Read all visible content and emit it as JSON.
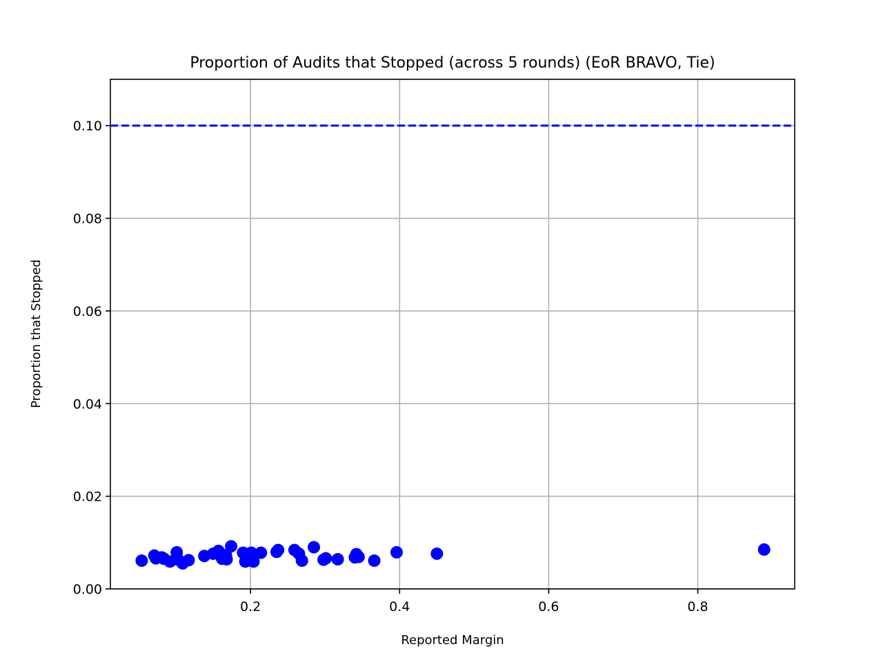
{
  "chart_data": {
    "type": "scatter",
    "title": "Proportion of Audits that Stopped (across 5 rounds) (EoR BRAVO, Tie)",
    "xlabel": "Reported Margin",
    "ylabel": "Proportion that Stopped",
    "xlim": [
      0.012,
      0.93
    ],
    "ylim": [
      0.0,
      0.11
    ],
    "xticks": [
      0.2,
      0.4,
      0.6,
      0.8
    ],
    "xtick_labels": [
      "0.2",
      "0.4",
      "0.6",
      "0.8"
    ],
    "yticks": [
      0.0,
      0.02,
      0.04,
      0.06,
      0.08,
      0.1
    ],
    "ytick_labels": [
      "0.00",
      "0.02",
      "0.04",
      "0.06",
      "0.08",
      "0.10"
    ],
    "grid": true,
    "reference_line": {
      "y": 0.1,
      "style": "dashed",
      "color": "#0000ff"
    },
    "marker_color": "#0000ff",
    "points": [
      {
        "x": 0.054,
        "y": 0.0061
      },
      {
        "x": 0.071,
        "y": 0.0072
      },
      {
        "x": 0.073,
        "y": 0.0066
      },
      {
        "x": 0.081,
        "y": 0.0068
      },
      {
        "x": 0.084,
        "y": 0.0065
      },
      {
        "x": 0.092,
        "y": 0.0059
      },
      {
        "x": 0.101,
        "y": 0.0079
      },
      {
        "x": 0.103,
        "y": 0.0063
      },
      {
        "x": 0.109,
        "y": 0.0055
      },
      {
        "x": 0.117,
        "y": 0.0062
      },
      {
        "x": 0.138,
        "y": 0.0071
      },
      {
        "x": 0.15,
        "y": 0.0076
      },
      {
        "x": 0.157,
        "y": 0.0082
      },
      {
        "x": 0.162,
        "y": 0.0065
      },
      {
        "x": 0.167,
        "y": 0.0073
      },
      {
        "x": 0.168,
        "y": 0.0064
      },
      {
        "x": 0.174,
        "y": 0.0092
      },
      {
        "x": 0.19,
        "y": 0.0078
      },
      {
        "x": 0.193,
        "y": 0.0059
      },
      {
        "x": 0.201,
        "y": 0.0078
      },
      {
        "x": 0.204,
        "y": 0.0059
      },
      {
        "x": 0.214,
        "y": 0.0078
      },
      {
        "x": 0.235,
        "y": 0.008
      },
      {
        "x": 0.237,
        "y": 0.0084
      },
      {
        "x": 0.259,
        "y": 0.0084
      },
      {
        "x": 0.265,
        "y": 0.0076
      },
      {
        "x": 0.269,
        "y": 0.0061
      },
      {
        "x": 0.285,
        "y": 0.009
      },
      {
        "x": 0.298,
        "y": 0.0063
      },
      {
        "x": 0.301,
        "y": 0.0066
      },
      {
        "x": 0.317,
        "y": 0.0064
      },
      {
        "x": 0.34,
        "y": 0.0068
      },
      {
        "x": 0.342,
        "y": 0.0075
      },
      {
        "x": 0.345,
        "y": 0.0069
      },
      {
        "x": 0.366,
        "y": 0.0061
      },
      {
        "x": 0.396,
        "y": 0.0079
      },
      {
        "x": 0.45,
        "y": 0.0076
      },
      {
        "x": 0.889,
        "y": 0.0085
      }
    ]
  }
}
